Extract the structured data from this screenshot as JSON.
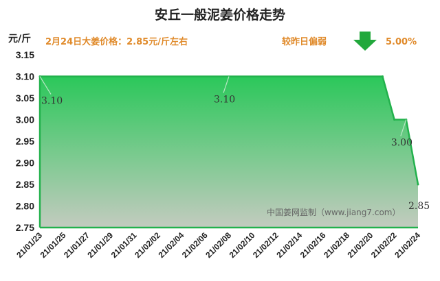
{
  "header": {
    "title": "安丘一般泥姜价格走势",
    "unit": "元/斤",
    "price_note": "2月24日大姜价格：2.85元/斤左右",
    "change_label": "较昨日偏弱",
    "change_value": "5.00%",
    "trend": "down",
    "trend_color": "#22a83c"
  },
  "watermark": "中国姜网监制（www.jiang7.com）",
  "colors": {
    "line": "#22b14c",
    "fill_top": "#2bc85a",
    "fill_bottom": "#c3cbbf"
  },
  "chart_data": {
    "type": "area",
    "title": "安丘一般泥姜价格走势",
    "ylabel": "元/斤",
    "ylim": [
      2.75,
      3.15
    ],
    "yticks": [
      "2.75",
      "2.80",
      "2.85",
      "2.90",
      "2.95",
      "3.00",
      "3.05",
      "3.10",
      "3.15"
    ],
    "xticks": [
      "21/01/23",
      "21/01/25",
      "21/01/27",
      "21/01/29",
      "21/01/31",
      "21/02/02",
      "21/02/04",
      "21/02/06",
      "21/02/08",
      "21/02/10",
      "21/02/12",
      "21/02/14",
      "21/02/16",
      "21/02/18",
      "21/02/20",
      "21/02/22",
      "21/02/24"
    ],
    "x": [
      "21/01/23",
      "21/02/21",
      "21/02/22",
      "21/02/23",
      "21/02/24"
    ],
    "values": [
      3.1,
      3.1,
      3.0,
      3.0,
      2.85
    ],
    "data_labels": [
      {
        "x": "21/01/23",
        "y": 3.1,
        "text": "3.10"
      },
      {
        "x": "21/02/08",
        "y": 3.1,
        "text": "3.10"
      },
      {
        "x": "21/02/23",
        "y": 3.0,
        "text": "3.00"
      },
      {
        "x": "21/02/24",
        "y": 2.85,
        "text": "2.85"
      }
    ]
  }
}
